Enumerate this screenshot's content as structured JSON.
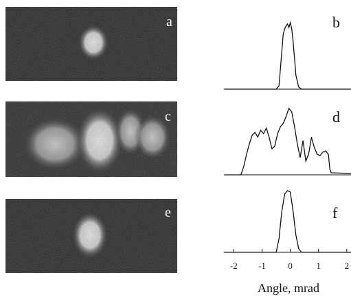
{
  "images": [
    {
      "label": "a"
    },
    {
      "label": "c"
    },
    {
      "label": "e"
    }
  ],
  "chart_data": [
    {
      "type": "line",
      "label": "b",
      "color": "#111111",
      "xlim": [
        -2.35,
        2.15
      ],
      "ylim": [
        0,
        1
      ],
      "x": [
        -2.35,
        -0.5,
        -0.4,
        -0.3,
        -0.25,
        -0.2,
        -0.15,
        -0.1,
        -0.05,
        0,
        0.05,
        0.1,
        0.15,
        0.2,
        0.3,
        0.4,
        2.15
      ],
      "values": [
        0,
        0,
        0.05,
        0.55,
        0.8,
        0.88,
        0.92,
        0.95,
        0.9,
        0.97,
        0.88,
        0.7,
        0.45,
        0.2,
        0.03,
        0,
        0
      ]
    },
    {
      "type": "line",
      "label": "d",
      "color": "#111111",
      "xlim": [
        -2.35,
        2.15
      ],
      "ylim": [
        0,
        1
      ],
      "x": [
        -2.35,
        -1.75,
        -1.65,
        -1.55,
        -1.45,
        -1.35,
        -1.25,
        -1.15,
        -1.05,
        -0.95,
        -0.85,
        -0.75,
        -0.65,
        -0.55,
        -0.45,
        -0.35,
        -0.25,
        -0.15,
        -0.05,
        0.05,
        0.15,
        0.25,
        0.35,
        0.45,
        0.55,
        0.65,
        0.75,
        0.85,
        0.95,
        1.05,
        1.15,
        1.25,
        1.35,
        1.4,
        1.45,
        2.15
      ],
      "values": [
        0,
        0,
        0.12,
        0.3,
        0.45,
        0.58,
        0.62,
        0.55,
        0.65,
        0.6,
        0.68,
        0.55,
        0.38,
        0.42,
        0.6,
        0.7,
        0.75,
        0.85,
        0.97,
        0.92,
        0.7,
        0.45,
        0.25,
        0.5,
        0.2,
        0.3,
        0.55,
        0.4,
        0.3,
        0.28,
        0.33,
        0.35,
        0.3,
        0.08,
        0.03,
        0.02
      ]
    },
    {
      "type": "line",
      "label": "f",
      "color": "#111111",
      "xlim": [
        -2.35,
        2.15
      ],
      "ylim": [
        0,
        1
      ],
      "x": [
        -2.35,
        -0.5,
        -0.4,
        -0.3,
        -0.2,
        -0.1,
        0,
        0.1,
        0.2,
        0.3,
        0.4,
        2.15
      ],
      "values": [
        0,
        0,
        0.2,
        0.6,
        0.85,
        0.9,
        0.88,
        0.6,
        0.25,
        0.05,
        0,
        0
      ],
      "xticks": [
        -2,
        -1,
        0,
        1,
        2
      ],
      "xlabel": "Angle, mrad"
    }
  ]
}
